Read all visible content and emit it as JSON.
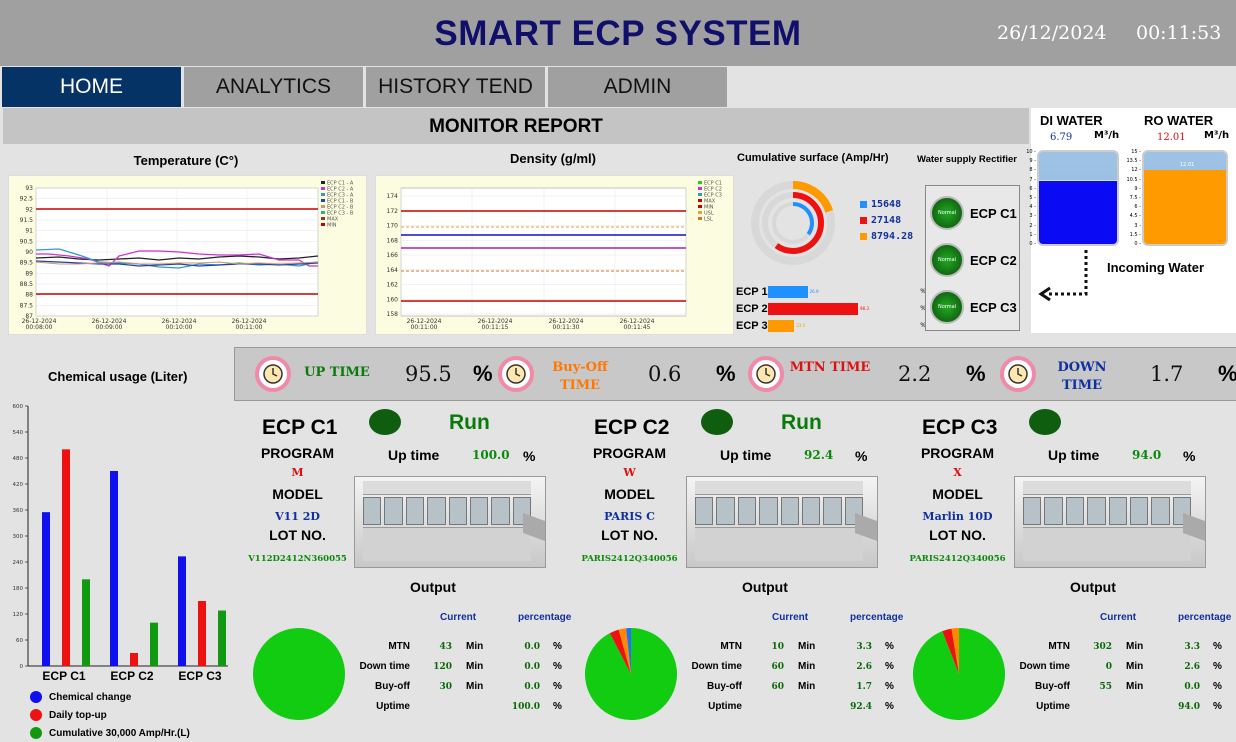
{
  "header": {
    "title": "SMART ECP SYSTEM",
    "date": "26/12/2024",
    "time": "00:11:53"
  },
  "nav": {
    "tabs": [
      {
        "label": "HOME",
        "active": true
      },
      {
        "label": "ANALYTICS"
      },
      {
        "label": "HISTORY TEND"
      },
      {
        "label": "ADMIN"
      }
    ]
  },
  "monitor": {
    "title": "MONITOR REPORT"
  },
  "temperature": {
    "title": "Temperature (C°)",
    "yticks": [
      "93",
      "92.5",
      "92",
      "91.5",
      "91",
      "90.5",
      "90",
      "89.5",
      "89",
      "88.5",
      "88",
      "87.5",
      "87"
    ],
    "xticks": [
      [
        "26-12-2024",
        "00:08:00"
      ],
      [
        "26-12-2024",
        "00:09:00"
      ],
      [
        "26-12-2024",
        "00:10:00"
      ],
      [
        "26-12-2024",
        "00:11:00"
      ]
    ],
    "legend": [
      "ECP C1 - A",
      "ECP C2 - A",
      "ECP C3 - A",
      "ECP C1 - B",
      "ECP C2 - B",
      "ECP C3 - B",
      "MAX",
      "MIN"
    ]
  },
  "density": {
    "title": "Density (g/ml)",
    "yticks": [
      "174",
      "172",
      "170",
      "168",
      "166",
      "164",
      "162",
      "160",
      "158"
    ],
    "xticks": [
      [
        "26-12-2024",
        "00:11:00"
      ],
      [
        "26-12-2024",
        "00:11:15"
      ],
      [
        "26-12-2024",
        "00:11:30"
      ],
      [
        "26-12-2024",
        "00:11:45"
      ]
    ],
    "legend": [
      "ECP C1",
      "ECP C2",
      "ECP C3",
      "MAX",
      "MIN",
      "USL",
      "LSL"
    ]
  },
  "surface": {
    "title": "Cumulative surface (Amp/Hr)",
    "rings": [
      {
        "value": "15648",
        "color": "#1e90ff",
        "fraction": 0.35
      },
      {
        "value": "27148",
        "color": "#ee1111",
        "fraction": 0.6
      },
      {
        "value": "8794.28",
        "color": "#ff9900",
        "fraction": 0.2
      }
    ],
    "bars": [
      {
        "label": "ECP 1",
        "color": "#1e90ff",
        "value": "26.9",
        "fraction": 0.33
      },
      {
        "label": "ECP 2",
        "color": "#ee1111",
        "value": "98.3",
        "fraction": 0.75
      },
      {
        "label": "ECP 3",
        "color": "#ff9900",
        "value": "23.5",
        "fraction": 0.22
      }
    ],
    "pct": "%"
  },
  "rectifier": {
    "title": "Water supply Rectifier",
    "items": [
      {
        "status": "Normal",
        "label": "ECP C1"
      },
      {
        "status": "Normal",
        "label": "ECP C2"
      },
      {
        "status": "Normal",
        "label": "ECP C3"
      }
    ]
  },
  "water": {
    "di": {
      "label": "DI WATER",
      "value": "6.79",
      "unit": "M³/h",
      "level": 0.68
    },
    "ro": {
      "label": "RO  WATER",
      "value": "12.01",
      "unit": "M³/h",
      "level": 0.8,
      "inner": "12.01"
    },
    "incoming": "Incoming Water",
    "di_ticks": [
      "10",
      "9",
      "8",
      "7",
      "6",
      "5",
      "4",
      "3",
      "2",
      "1",
      "0"
    ],
    "ro_ticks": [
      "15",
      "13.5",
      "12",
      "10.5",
      "9",
      "7.5",
      "6",
      "4.5",
      "3",
      "1.5",
      "0"
    ]
  },
  "chemical": {
    "title": "Chemical usage (Liter)",
    "yticks": [
      "600",
      "540",
      "480",
      "420",
      "360",
      "300",
      "240",
      "180",
      "120",
      "60",
      "0"
    ],
    "categories": [
      "ECP C1",
      "ECP C2",
      "ECP C3"
    ],
    "legend": [
      {
        "label": "Chemical change",
        "color": "#1010ee"
      },
      {
        "label": "Daily top-up",
        "color": "#ee1111"
      },
      {
        "label": "Cumulative 30,000 Amp/Hr.(L)",
        "color": "#119911"
      }
    ]
  },
  "chart_data": {
    "type": "bar",
    "title": "Chemical usage (Liter)",
    "categories": [
      "ECP C1",
      "ECP C2",
      "ECP C3"
    ],
    "ylim": [
      0,
      600
    ],
    "series": [
      {
        "name": "Chemical change",
        "values": [
          355,
          450,
          253
        ]
      },
      {
        "name": "Daily top-up",
        "values": [
          500,
          30,
          150
        ]
      },
      {
        "name": "Cumulative 30,000 Amp/Hr.(L)",
        "values": [
          200,
          100,
          128
        ]
      }
    ]
  },
  "status": [
    {
      "label": "UP TIME",
      "value": "95.5",
      "color": "#0a7a0a"
    },
    {
      "label": "Buy-Off TIME",
      "value": "0.6",
      "color": "#ff7700"
    },
    {
      "label": "MTN TIME",
      "value": "2.2",
      "color": "#dd1111"
    },
    {
      "label": "DOWN TIME",
      "value": "1.7",
      "color": "#1030a0"
    }
  ],
  "status_pct": "%",
  "labels": {
    "program": "PROGRAM",
    "model": "MODEL",
    "lot": "LOT NO.",
    "uptime": "Up time",
    "output": "Output",
    "current": "Current",
    "percentage": "percentage",
    "min": "Min",
    "pct": "%"
  },
  "ecps": [
    {
      "name": "ECP C1",
      "state": "Run",
      "program": "M",
      "model": "V11  2D",
      "lot": "V112D2412N360055",
      "uptime": "100.0",
      "rows": [
        {
          "label": "MTN",
          "current": "43",
          "pct": "0.0"
        },
        {
          "label": "Down time",
          "current": "120",
          "pct": "0.0"
        },
        {
          "label": "Buy-off",
          "current": "30",
          "pct": "0.0"
        },
        {
          "label": "Uptime",
          "current": "",
          "pct": "100.0"
        }
      ]
    },
    {
      "name": "ECP C2",
      "state": "Run",
      "program": "W",
      "model": "PARIS  C",
      "lot": "PARIS2412Q340056",
      "uptime": "92.4",
      "rows": [
        {
          "label": "MTN",
          "current": "10",
          "pct": "3.3"
        },
        {
          "label": "Down time",
          "current": "60",
          "pct": "2.6"
        },
        {
          "label": "Buy-off",
          "current": "60",
          "pct": "1.7"
        },
        {
          "label": "Uptime",
          "current": "",
          "pct": "92.4"
        }
      ]
    },
    {
      "name": "ECP C3",
      "state": "",
      "program": "X",
      "model": "Marlin  10D",
      "lot": "PARIS2412Q340056",
      "uptime": "94.0",
      "rows": [
        {
          "label": "MTN",
          "current": "302",
          "pct": "3.3"
        },
        {
          "label": "Down time",
          "current": "0",
          "pct": "2.6"
        },
        {
          "label": "Buy-off",
          "current": "55",
          "pct": "0.0"
        },
        {
          "label": "Uptime",
          "current": "",
          "pct": "94.0"
        }
      ]
    }
  ]
}
